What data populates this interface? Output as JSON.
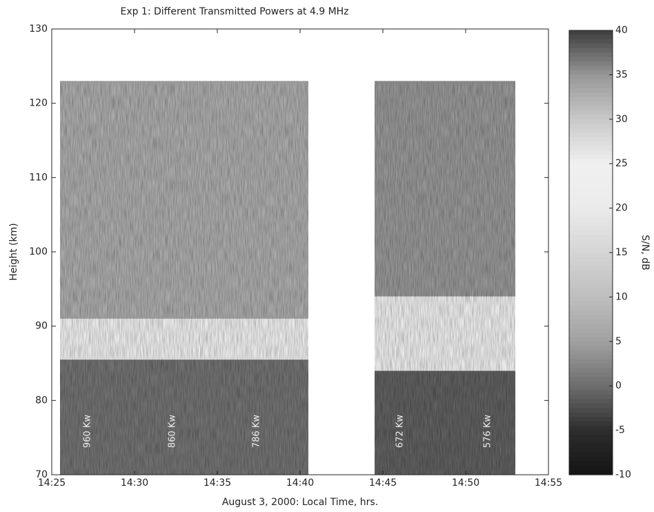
{
  "chart_data": {
    "type": "heatmap",
    "title": "Exp 1: Different Transmitted Powers at 4.9 MHz",
    "xlabel": "August 3, 2000: Local Time, hrs.",
    "ylabel": "Height (km)",
    "xlim": [
      865,
      895
    ],
    "xticks": [
      {
        "value": 865,
        "label": "14:25"
      },
      {
        "value": 870,
        "label": "14:30"
      },
      {
        "value": 875,
        "label": "14:35"
      },
      {
        "value": 880,
        "label": "14:40"
      },
      {
        "value": 885,
        "label": "14:45"
      },
      {
        "value": 890,
        "label": "14:50"
      },
      {
        "value": 895,
        "label": "14:55"
      }
    ],
    "ylim": [
      70,
      130
    ],
    "yticks": [
      70,
      80,
      90,
      100,
      110,
      120,
      130
    ],
    "cells": [
      {
        "x": [
          865.5,
          880.5
        ],
        "y": [
          70,
          85.5
        ],
        "value": 37
      },
      {
        "x": [
          865.5,
          880.5
        ],
        "y": [
          85.5,
          91
        ],
        "value": 21
      },
      {
        "x": [
          865.5,
          880.5
        ],
        "y": [
          91,
          123
        ],
        "value": 33
      },
      {
        "x": [
          884.5,
          893
        ],
        "y": [
          70,
          84
        ],
        "value": 38
      },
      {
        "x": [
          884.5,
          893
        ],
        "y": [
          84,
          94
        ],
        "value": 20
      },
      {
        "x": [
          884.5,
          893
        ],
        "y": [
          94,
          123
        ],
        "value": 35
      }
    ],
    "annotations": [
      "960 Kw",
      "860 Kw",
      "786 Kw",
      "672 Kw",
      "576 Kw"
    ],
    "colorbar": {
      "label": "S/N, dB",
      "clim": [
        -10,
        40
      ],
      "ticks": [
        -10,
        -5,
        0,
        5,
        10,
        15,
        20,
        25,
        30,
        35,
        40
      ]
    }
  }
}
